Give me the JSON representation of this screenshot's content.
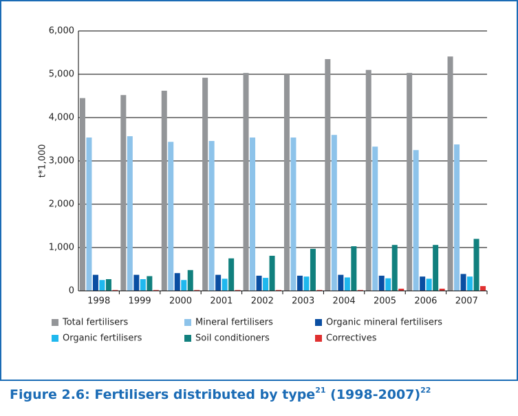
{
  "chart_data": {
    "type": "bar",
    "caption": [
      "Figure 2.6: Fertilisers distributed by type",
      "21",
      " (1998-2007)",
      "22"
    ],
    "y_label": "t*1,000",
    "categories": [
      "1998",
      "1999",
      "2000",
      "2001",
      "2002",
      "2003",
      "2004",
      "2005",
      "2006",
      "2007"
    ],
    "series": [
      {
        "name": "Total fertilisers",
        "color": "#939598",
        "values": [
          4450,
          4520,
          4620,
          4920,
          5030,
          5000,
          5350,
          5100,
          5030,
          5410
        ]
      },
      {
        "name": "Mineral fertilisers",
        "color": "#8dc3ea",
        "values": [
          3540,
          3570,
          3440,
          3460,
          3540,
          3540,
          3600,
          3330,
          3250,
          3380
        ]
      },
      {
        "name": "Organic mineral fertilisers",
        "color": "#0a4ea2",
        "values": [
          370,
          370,
          410,
          370,
          350,
          350,
          370,
          350,
          330,
          390
        ]
      },
      {
        "name": "Organic fertilisers",
        "color": "#1fb8ee",
        "values": [
          250,
          270,
          250,
          280,
          300,
          330,
          310,
          290,
          280,
          330
        ]
      },
      {
        "name": "Soil conditioners",
        "color": "#11807e",
        "values": [
          270,
          340,
          480,
          750,
          810,
          970,
          1030,
          1060,
          1060,
          1200
        ]
      },
      {
        "name": "Correctives",
        "color": "#e03030",
        "values": [
          20,
          20,
          20,
          20,
          20,
          20,
          20,
          50,
          50,
          110
        ]
      }
    ],
    "ylim": [
      0,
      6000
    ],
    "yticks": [
      0,
      {
        "value": 1000,
        "label": "1,000"
      },
      {
        "value": 2000,
        "label": "2,000"
      },
      {
        "value": 3000,
        "label": "3,000"
      },
      {
        "value": 4000,
        "label": "4,000"
      },
      {
        "value": 5000,
        "label": "5,000"
      },
      {
        "value": 6000,
        "label": "6,000"
      }
    ],
    "grid": true
  }
}
